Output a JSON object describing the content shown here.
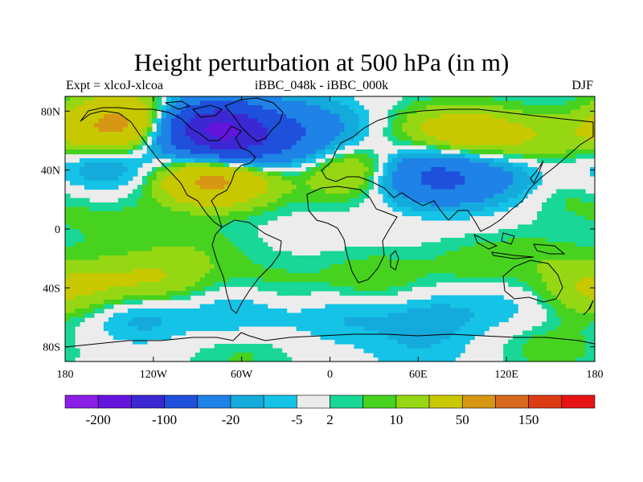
{
  "title": "Height perturbation at 500 hPa (in m)",
  "subtitle_left": "Expt = xlcoJ-xlcoa",
  "subtitle_center": "iBBC_048k - iBBC_000k",
  "subtitle_right": "DJF",
  "chart_data": {
    "type": "heatmap",
    "projection": "cylindrical-equidistant",
    "x_axis": {
      "range": [
        -180,
        180
      ],
      "ticks": [
        {
          "value": -180,
          "label": "180"
        },
        {
          "value": -120,
          "label": "120W"
        },
        {
          "value": -60,
          "label": "60W"
        },
        {
          "value": 0,
          "label": "0"
        },
        {
          "value": 60,
          "label": "60E"
        },
        {
          "value": 120,
          "label": "120E"
        },
        {
          "value": 180,
          "label": "180"
        }
      ]
    },
    "y_axis": {
      "range": [
        -90,
        90
      ],
      "ticks": [
        {
          "value": 80,
          "label": "80N"
        },
        {
          "value": 40,
          "label": "40N"
        },
        {
          "value": 0,
          "label": "0"
        },
        {
          "value": -40,
          "label": "40S"
        },
        {
          "value": -80,
          "label": "80S"
        }
      ]
    },
    "colorbar": {
      "colors": [
        "#8a1ee6",
        "#6414dc",
        "#3c28d2",
        "#1e50dc",
        "#1e82e6",
        "#14aadc",
        "#14c3e6",
        "#ececec",
        "#19d796",
        "#46d21e",
        "#96d714",
        "#c8c800",
        "#d79614",
        "#d7691e",
        "#dc3c14",
        "#e61414"
      ],
      "labels": [
        {
          "after_box": 1,
          "text": "-200"
        },
        {
          "after_box": 3,
          "text": "-100"
        },
        {
          "after_box": 5,
          "text": "-20"
        },
        {
          "after_box": 7,
          "text": "-5"
        },
        {
          "after_box": 8,
          "text": "2"
        },
        {
          "after_box": 10,
          "text": "10"
        },
        {
          "after_box": 12,
          "text": "50"
        },
        {
          "after_box": 14,
          "text": "150"
        }
      ]
    },
    "anomalies": [
      {
        "lon": -75,
        "lat": 62,
        "value": -60
      },
      {
        "lon": -80,
        "lat": 70,
        "value": -100
      },
      {
        "lon": -50,
        "lat": 55,
        "value": -40
      },
      {
        "lon": -20,
        "lat": 72,
        "value": -25
      },
      {
        "lon": -150,
        "lat": 68,
        "value": 40
      },
      {
        "lon": -130,
        "lat": 75,
        "value": 30
      },
      {
        "lon": -85,
        "lat": 35,
        "value": 45
      },
      {
        "lon": -65,
        "lat": 38,
        "value": 30
      },
      {
        "lon": -165,
        "lat": 43,
        "value": -15
      },
      {
        "lon": -130,
        "lat": 45,
        "value": -12
      },
      {
        "lon": 20,
        "lat": 40,
        "value": 30
      },
      {
        "lon": 0,
        "lat": 60,
        "value": -10
      },
      {
        "lon": 80,
        "lat": 65,
        "value": 25
      },
      {
        "lon": 110,
        "lat": 62,
        "value": 20
      },
      {
        "lon": 155,
        "lat": 58,
        "value": 12
      },
      {
        "lon": 60,
        "lat": 38,
        "value": -40
      },
      {
        "lon": 85,
        "lat": 33,
        "value": -30
      },
      {
        "lon": 120,
        "lat": 38,
        "value": -15
      },
      {
        "lon": 160,
        "lat": 25,
        "value": 8
      },
      {
        "lon": -150,
        "lat": 5,
        "value": 6
      },
      {
        "lon": -90,
        "lat": -15,
        "value": 7
      },
      {
        "lon": -120,
        "lat": -35,
        "value": 20
      },
      {
        "lon": -170,
        "lat": -40,
        "value": 18
      },
      {
        "lon": -130,
        "lat": -58,
        "value": -15
      },
      {
        "lon": -60,
        "lat": -55,
        "value": -12
      },
      {
        "lon": -40,
        "lat": -40,
        "value": 8
      },
      {
        "lon": 30,
        "lat": -35,
        "value": 10
      },
      {
        "lon": 10,
        "lat": -60,
        "value": -10
      },
      {
        "lon": 70,
        "lat": -60,
        "value": -12
      },
      {
        "lon": 130,
        "lat": -50,
        "value": -10
      },
      {
        "lon": 100,
        "lat": -25,
        "value": 7
      },
      {
        "lon": 140,
        "lat": -20,
        "value": 6
      },
      {
        "lon": 160,
        "lat": -45,
        "value": 10
      },
      {
        "lon": 60,
        "lat": -85,
        "value": -7
      },
      {
        "lon": -60,
        "lat": -85,
        "value": 6
      },
      {
        "lon": 150,
        "lat": -80,
        "value": 8
      }
    ]
  }
}
